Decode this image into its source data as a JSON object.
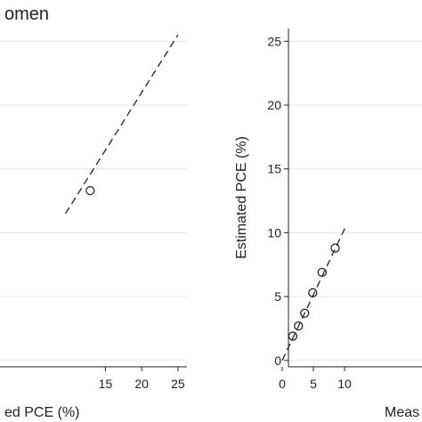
{
  "chart_data": [
    {
      "type": "scatter",
      "title": "omen",
      "xlabel": "ed PCE (%)",
      "ylabel": "",
      "xlim": [
        -0.5,
        25.5
      ],
      "ylim": [
        -0.5,
        26
      ],
      "x_ticks": [
        15,
        20,
        25
      ],
      "y_ticks": [
        0,
        5,
        10,
        15,
        20,
        25
      ],
      "show_y_tick_labels": false,
      "grid": true,
      "reference_line": {
        "style": "dashed",
        "from": [
          9.5,
          11.5
        ],
        "to": [
          25,
          25.5
        ]
      },
      "points": [
        {
          "x": 12.9,
          "y": 13.3
        }
      ]
    },
    {
      "type": "scatter",
      "title": "",
      "xlabel": "Meas",
      "ylabel": "Estimated PCE (%)",
      "xlim": [
        -1,
        25
      ],
      "ylim": [
        -0.5,
        26
      ],
      "x_ticks": [
        0,
        5,
        10
      ],
      "y_ticks": [
        0,
        5,
        10,
        15,
        20,
        25
      ],
      "show_y_tick_labels": true,
      "grid": true,
      "reference_line": {
        "style": "dashed",
        "from": [
          0,
          0
        ],
        "to": [
          10.2,
          10.5
        ]
      },
      "points": [
        {
          "x": 1.7,
          "y": 1.9
        },
        {
          "x": 2.6,
          "y": 2.7
        },
        {
          "x": 3.6,
          "y": 3.7
        },
        {
          "x": 4.9,
          "y": 5.3
        },
        {
          "x": 6.4,
          "y": 6.9
        },
        {
          "x": 8.5,
          "y": 8.8
        }
      ]
    }
  ]
}
